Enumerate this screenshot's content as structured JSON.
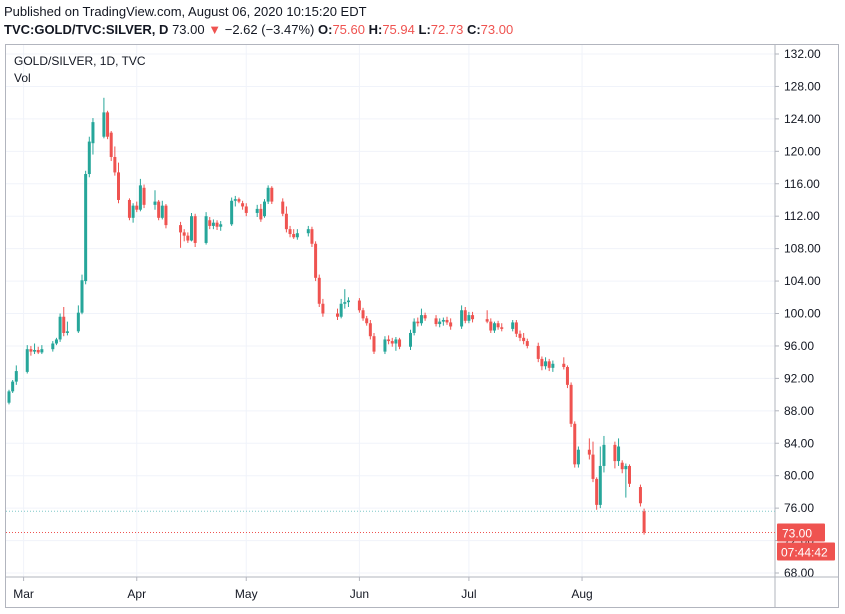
{
  "header": {
    "published": "Published on TradingView.com, August 06, 2020 10:15:20 EDT",
    "symbol": "TVC:GOLD/TVC:SILVER, D",
    "last": "73.00",
    "change": "−2.62 (−3.47%)",
    "open_label": "O:",
    "open": "75.60",
    "high_label": "H:",
    "high": "75.94",
    "low_label": "L:",
    "low": "72.73",
    "close_label": "C:",
    "close": "73.00"
  },
  "legend": {
    "title": "GOLD/SILVER, 1D, TVC",
    "vol": "Vol"
  },
  "colors": {
    "up": "#26a69a",
    "down": "#ef5350",
    "grid": "#f0f3fa",
    "axis": "#b2b5be"
  },
  "chart_data": {
    "type": "candlestick",
    "y_ticks": [
      "68.00",
      "72.00",
      "76.00",
      "80.00",
      "84.00",
      "88.00",
      "92.00",
      "96.00",
      "100.00",
      "104.00",
      "108.00",
      "112.00",
      "116.00",
      "120.00",
      "124.00",
      "128.00",
      "132.00"
    ],
    "x_ticks": [
      "Mar",
      "Apr",
      "May",
      "Jun",
      "Jul",
      "Aug"
    ],
    "ylim": [
      68,
      132
    ],
    "last_price_label": "73.00",
    "countdown_label": "07:44:42",
    "prev_close": 75.62,
    "candles": [
      {
        "d": "2020-02-26",
        "o": 89,
        "h": 90.6,
        "l": 88.8,
        "c": 90.4
      },
      {
        "d": "2020-02-27",
        "o": 90.4,
        "h": 91.8,
        "l": 90.2,
        "c": 91.6
      },
      {
        "d": "2020-02-28",
        "o": 91.6,
        "h": 93.6,
        "l": 91.2,
        "c": 92.9
      },
      {
        "d": "2020-03-02",
        "o": 92.8,
        "h": 96.1,
        "l": 92.6,
        "c": 95.6
      },
      {
        "d": "2020-03-03",
        "o": 95.6,
        "h": 96.0,
        "l": 94.8,
        "c": 95.3
      },
      {
        "d": "2020-03-04",
        "o": 95.3,
        "h": 96.3,
        "l": 95.0,
        "c": 95.5
      },
      {
        "d": "2020-03-05",
        "o": 95.5,
        "h": 95.9,
        "l": 95.0,
        "c": 95.2
      },
      {
        "d": "2020-03-06",
        "o": 95.2,
        "h": 96.1,
        "l": 95.0,
        "c": 95.6
      },
      {
        "d": "2020-03-09",
        "o": 95.6,
        "h": 96.6,
        "l": 95.3,
        "c": 96.3
      },
      {
        "d": "2020-03-10",
        "o": 96.3,
        "h": 97.0,
        "l": 96.1,
        "c": 96.8
      },
      {
        "d": "2020-03-11",
        "o": 96.8,
        "h": 100.0,
        "l": 96.5,
        "c": 99.6
      },
      {
        "d": "2020-03-12",
        "o": 99.6,
        "h": 100.8,
        "l": 97.2,
        "c": 97.6
      },
      {
        "d": "2020-03-13",
        "o": 97.6,
        "h": 99.0,
        "l": 97.3,
        "c": 97.8
      },
      {
        "d": "2020-03-16",
        "o": 97.8,
        "h": 101.0,
        "l": 97.6,
        "c": 100.1
      },
      {
        "d": "2020-03-17",
        "o": 100.1,
        "h": 104.8,
        "l": 99.9,
        "c": 104.1
      },
      {
        "d": "2020-03-18",
        "o": 104.0,
        "h": 117.6,
        "l": 103.6,
        "c": 117.2
      },
      {
        "d": "2020-03-19",
        "o": 117.2,
        "h": 121.8,
        "l": 116.8,
        "c": 121.2
      },
      {
        "d": "2020-03-20",
        "o": 121.0,
        "h": 124.1,
        "l": 119.6,
        "c": 123.6
      },
      {
        "d": "2020-03-23",
        "o": 121.8,
        "h": 126.6,
        "l": 121.6,
        "c": 124.8
      },
      {
        "d": "2020-03-24",
        "o": 124.8,
        "h": 125.0,
        "l": 121.5,
        "c": 121.8
      },
      {
        "d": "2020-03-25",
        "o": 122.3,
        "h": 122.5,
        "l": 118.8,
        "c": 119.3
      },
      {
        "d": "2020-03-26",
        "o": 119.3,
        "h": 120.6,
        "l": 117.0,
        "c": 117.4
      },
      {
        "d": "2020-03-27",
        "o": 117.4,
        "h": 118.6,
        "l": 113.6,
        "c": 114.0
      },
      {
        "d": "2020-03-30",
        "o": 114.0,
        "h": 114.2,
        "l": 111.5,
        "c": 111.8
      },
      {
        "d": "2020-03-31",
        "o": 111.8,
        "h": 113.6,
        "l": 111.2,
        "c": 113.3
      },
      {
        "d": "2020-04-01",
        "o": 113.3,
        "h": 113.8,
        "l": 112.5,
        "c": 112.8
      },
      {
        "d": "2020-04-02",
        "o": 112.8,
        "h": 116.6,
        "l": 112.6,
        "c": 115.8
      },
      {
        "d": "2020-04-03",
        "o": 115.5,
        "h": 115.9,
        "l": 113.0,
        "c": 113.4
      },
      {
        "d": "2020-04-06",
        "o": 113.4,
        "h": 115.2,
        "l": 112.8,
        "c": 113.8
      },
      {
        "d": "2020-04-07",
        "o": 113.8,
        "h": 114.0,
        "l": 111.5,
        "c": 111.8
      },
      {
        "d": "2020-04-08",
        "o": 111.8,
        "h": 113.9,
        "l": 111.6,
        "c": 113.3
      },
      {
        "d": "2020-04-09",
        "o": 113.3,
        "h": 113.5,
        "l": 110.5,
        "c": 110.9
      },
      {
        "d": "2020-04-13",
        "o": 110.9,
        "h": 111.3,
        "l": 108.1,
        "c": 110.0
      },
      {
        "d": "2020-04-14",
        "o": 110.0,
        "h": 110.4,
        "l": 108.9,
        "c": 109.6
      },
      {
        "d": "2020-04-15",
        "o": 109.6,
        "h": 110.0,
        "l": 108.7,
        "c": 109.0
      },
      {
        "d": "2020-04-16",
        "o": 109.0,
        "h": 112.4,
        "l": 108.9,
        "c": 112.0
      },
      {
        "d": "2020-04-17",
        "o": 112.0,
        "h": 112.3,
        "l": 108.2,
        "c": 108.7
      },
      {
        "d": "2020-04-20",
        "o": 108.7,
        "h": 112.5,
        "l": 108.5,
        "c": 112.0
      },
      {
        "d": "2020-04-21",
        "o": 111.5,
        "h": 111.9,
        "l": 110.4,
        "c": 110.8
      },
      {
        "d": "2020-04-22",
        "o": 110.8,
        "h": 111.6,
        "l": 110.4,
        "c": 111.2
      },
      {
        "d": "2020-04-23",
        "o": 111.2,
        "h": 111.5,
        "l": 110.3,
        "c": 110.7
      },
      {
        "d": "2020-04-24",
        "o": 110.7,
        "h": 111.4,
        "l": 110.2,
        "c": 111.0
      },
      {
        "d": "2020-04-27",
        "o": 111.0,
        "h": 114.3,
        "l": 110.8,
        "c": 113.9
      },
      {
        "d": "2020-04-28",
        "o": 113.9,
        "h": 114.5,
        "l": 113.2,
        "c": 114.1
      },
      {
        "d": "2020-04-29",
        "o": 114.1,
        "h": 114.3,
        "l": 113.6,
        "c": 113.8
      },
      {
        "d": "2020-04-30",
        "o": 113.6,
        "h": 113.9,
        "l": 112.8,
        "c": 113.2
      },
      {
        "d": "2020-05-01",
        "o": 113.2,
        "h": 113.6,
        "l": 112.0,
        "c": 112.4
      },
      {
        "d": "2020-05-04",
        "o": 112.4,
        "h": 113.4,
        "l": 111.9,
        "c": 112.9
      },
      {
        "d": "2020-05-05",
        "o": 112.9,
        "h": 113.5,
        "l": 111.3,
        "c": 111.6
      },
      {
        "d": "2020-05-06",
        "o": 112.0,
        "h": 114.1,
        "l": 111.8,
        "c": 113.8
      },
      {
        "d": "2020-05-07",
        "o": 113.8,
        "h": 115.8,
        "l": 113.5,
        "c": 115.5
      },
      {
        "d": "2020-05-08",
        "o": 115.5,
        "h": 115.7,
        "l": 113.5,
        "c": 113.8
      },
      {
        "d": "2020-05-11",
        "o": 113.8,
        "h": 114.2,
        "l": 112.0,
        "c": 112.3
      },
      {
        "d": "2020-05-12",
        "o": 112.3,
        "h": 113.2,
        "l": 110.0,
        "c": 110.4
      },
      {
        "d": "2020-05-13",
        "o": 110.4,
        "h": 110.8,
        "l": 109.4,
        "c": 109.8
      },
      {
        "d": "2020-05-14",
        "o": 109.8,
        "h": 110.4,
        "l": 109.2,
        "c": 109.4
      },
      {
        "d": "2020-05-15",
        "o": 109.4,
        "h": 110.4,
        "l": 109.1,
        "c": 109.9
      },
      {
        "d": "2020-05-18",
        "o": 109.9,
        "h": 110.8,
        "l": 109.5,
        "c": 110.4
      },
      {
        "d": "2020-05-19",
        "o": 110.4,
        "h": 110.7,
        "l": 108.2,
        "c": 108.6
      },
      {
        "d": "2020-05-20",
        "o": 108.6,
        "h": 108.9,
        "l": 104.0,
        "c": 104.4
      },
      {
        "d": "2020-05-21",
        "o": 104.4,
        "h": 104.8,
        "l": 100.8,
        "c": 101.2
      },
      {
        "d": "2020-05-22",
        "o": 101.2,
        "h": 101.8,
        "l": 99.6,
        "c": 100.0
      },
      {
        "d": "2020-05-26",
        "o": 100.0,
        "h": 100.6,
        "l": 99.2,
        "c": 99.6
      },
      {
        "d": "2020-05-27",
        "o": 99.6,
        "h": 101.8,
        "l": 99.4,
        "c": 101.2
      },
      {
        "d": "2020-05-28",
        "o": 101.2,
        "h": 103.0,
        "l": 100.6,
        "c": 101.4
      },
      {
        "d": "2020-05-29",
        "o": 101.4,
        "h": 102.0,
        "l": 100.8,
        "c": 101.6
      },
      {
        "d": "2020-06-01",
        "o": 101.6,
        "h": 101.9,
        "l": 100.1,
        "c": 100.4
      },
      {
        "d": "2020-06-02",
        "o": 100.4,
        "h": 100.7,
        "l": 99.1,
        "c": 99.4
      },
      {
        "d": "2020-06-03",
        "o": 99.4,
        "h": 99.7,
        "l": 98.5,
        "c": 98.8
      },
      {
        "d": "2020-06-04",
        "o": 98.8,
        "h": 99.2,
        "l": 96.8,
        "c": 97.2
      },
      {
        "d": "2020-06-05",
        "o": 97.2,
        "h": 97.6,
        "l": 95.0,
        "c": 95.3
      },
      {
        "d": "2020-06-08",
        "o": 95.3,
        "h": 97.2,
        "l": 95.0,
        "c": 96.8
      },
      {
        "d": "2020-06-09",
        "o": 96.8,
        "h": 97.3,
        "l": 96.2,
        "c": 96.6
      },
      {
        "d": "2020-06-10",
        "o": 96.6,
        "h": 97.0,
        "l": 95.9,
        "c": 96.3
      },
      {
        "d": "2020-06-11",
        "o": 96.3,
        "h": 97.1,
        "l": 95.4,
        "c": 96.8
      },
      {
        "d": "2020-06-12",
        "o": 96.8,
        "h": 97.0,
        "l": 95.6,
        "c": 95.9
      },
      {
        "d": "2020-06-15",
        "o": 95.9,
        "h": 98.0,
        "l": 95.5,
        "c": 97.6
      },
      {
        "d": "2020-06-16",
        "o": 97.6,
        "h": 99.4,
        "l": 97.3,
        "c": 99.0
      },
      {
        "d": "2020-06-17",
        "o": 99.0,
        "h": 99.5,
        "l": 98.4,
        "c": 98.8
      },
      {
        "d": "2020-06-18",
        "o": 98.8,
        "h": 100.6,
        "l": 98.5,
        "c": 99.8
      },
      {
        "d": "2020-06-19",
        "o": 99.8,
        "h": 100.1,
        "l": 99.1,
        "c": 99.4
      },
      {
        "d": "2020-06-22",
        "o": 99.4,
        "h": 99.8,
        "l": 98.4,
        "c": 98.7
      },
      {
        "d": "2020-06-23",
        "o": 98.7,
        "h": 99.4,
        "l": 98.3,
        "c": 99.0
      },
      {
        "d": "2020-06-24",
        "o": 99.0,
        "h": 99.5,
        "l": 98.5,
        "c": 99.2
      },
      {
        "d": "2020-06-25",
        "o": 99.2,
        "h": 99.6,
        "l": 98.6,
        "c": 98.9
      },
      {
        "d": "2020-06-26",
        "o": 98.9,
        "h": 99.4,
        "l": 98.0,
        "c": 98.4
      },
      {
        "d": "2020-06-29",
        "o": 98.4,
        "h": 101.0,
        "l": 98.1,
        "c": 100.4
      },
      {
        "d": "2020-06-30",
        "o": 100.4,
        "h": 100.8,
        "l": 98.8,
        "c": 99.1
      },
      {
        "d": "2020-07-01",
        "o": 99.1,
        "h": 100.2,
        "l": 98.8,
        "c": 99.8
      },
      {
        "d": "2020-07-02",
        "o": 99.8,
        "h": 100.2,
        "l": 98.9,
        "c": 99.3
      },
      {
        "d": "2020-07-06",
        "o": 99.3,
        "h": 100.4,
        "l": 98.8,
        "c": 99.0
      },
      {
        "d": "2020-07-07",
        "o": 99.0,
        "h": 99.4,
        "l": 97.6,
        "c": 97.9
      },
      {
        "d": "2020-07-08",
        "o": 97.9,
        "h": 99.0,
        "l": 97.6,
        "c": 98.8
      },
      {
        "d": "2020-07-09",
        "o": 98.8,
        "h": 99.1,
        "l": 98.0,
        "c": 98.3
      },
      {
        "d": "2020-07-10",
        "o": 98.3,
        "h": 98.8,
        "l": 97.8,
        "c": 98.1
      },
      {
        "d": "2020-07-13",
        "o": 98.1,
        "h": 99.2,
        "l": 97.8,
        "c": 98.9
      },
      {
        "d": "2020-07-14",
        "o": 98.9,
        "h": 99.2,
        "l": 97.1,
        "c": 97.5
      },
      {
        "d": "2020-07-15",
        "o": 97.5,
        "h": 97.9,
        "l": 96.6,
        "c": 97.0
      },
      {
        "d": "2020-07-16",
        "o": 97.0,
        "h": 97.6,
        "l": 96.2,
        "c": 96.6
      },
      {
        "d": "2020-07-17",
        "o": 96.6,
        "h": 96.9,
        "l": 95.7,
        "c": 96.0
      },
      {
        "d": "2020-07-20",
        "o": 96.0,
        "h": 96.4,
        "l": 94.0,
        "c": 94.4
      },
      {
        "d": "2020-07-21",
        "o": 94.4,
        "h": 94.7,
        "l": 93.0,
        "c": 93.5
      },
      {
        "d": "2020-07-22",
        "o": 93.5,
        "h": 94.6,
        "l": 93.1,
        "c": 94.1
      },
      {
        "d": "2020-07-23",
        "o": 94.1,
        "h": 94.4,
        "l": 92.9,
        "c": 93.3
      },
      {
        "d": "2020-07-24",
        "o": 93.3,
        "h": 94.2,
        "l": 92.8,
        "c": 93.8
      },
      {
        "d": "2020-07-27",
        "o": 93.8,
        "h": 94.6,
        "l": 93.1,
        "c": 93.4
      },
      {
        "d": "2020-07-28",
        "o": 93.4,
        "h": 93.6,
        "l": 90.8,
        "c": 91.2
      },
      {
        "d": "2020-07-29",
        "o": 91.2,
        "h": 91.5,
        "l": 86.0,
        "c": 86.4
      },
      {
        "d": "2020-07-30",
        "o": 86.4,
        "h": 86.7,
        "l": 81.0,
        "c": 81.4
      },
      {
        "d": "2020-07-31",
        "o": 81.4,
        "h": 83.6,
        "l": 81.0,
        "c": 83.2
      },
      {
        "d": "2020-08-03",
        "o": 83.2,
        "h": 84.6,
        "l": 82.0,
        "c": 82.6
      },
      {
        "d": "2020-08-04",
        "o": 82.6,
        "h": 84.2,
        "l": 79.2,
        "c": 79.6
      },
      {
        "d": "2020-08-05",
        "o": 79.6,
        "h": 79.8,
        "l": 75.8,
        "c": 76.4
      },
      {
        "d": "2020-08-06",
        "o": 76.4,
        "h": 83.6,
        "l": 76.0,
        "c": 81.2
      },
      {
        "d": "2020-08-07",
        "o": 81.2,
        "h": 84.9,
        "l": 80.4,
        "c": 83.8
      },
      {
        "d": "2020-08-10",
        "o": 83.8,
        "h": 84.2,
        "l": 80.9,
        "c": 81.8
      },
      {
        "d": "2020-08-11",
        "o": 81.8,
        "h": 84.6,
        "l": 81.2,
        "c": 83.6
      },
      {
        "d": "2020-08-12",
        "o": 81.6,
        "h": 81.9,
        "l": 80.3,
        "c": 80.8
      },
      {
        "d": "2020-08-13",
        "o": 80.8,
        "h": 81.5,
        "l": 77.3,
        "c": 81.2
      },
      {
        "d": "2020-08-14",
        "o": 81.2,
        "h": 81.4,
        "l": 78.6,
        "c": 79.0
      },
      {
        "d": "2020-08-17",
        "o": 78.6,
        "h": 78.9,
        "l": 76.2,
        "c": 76.6
      },
      {
        "d": "2020-08-18",
        "o": 75.6,
        "h": 75.94,
        "l": 72.73,
        "c": 73.0
      }
    ]
  }
}
